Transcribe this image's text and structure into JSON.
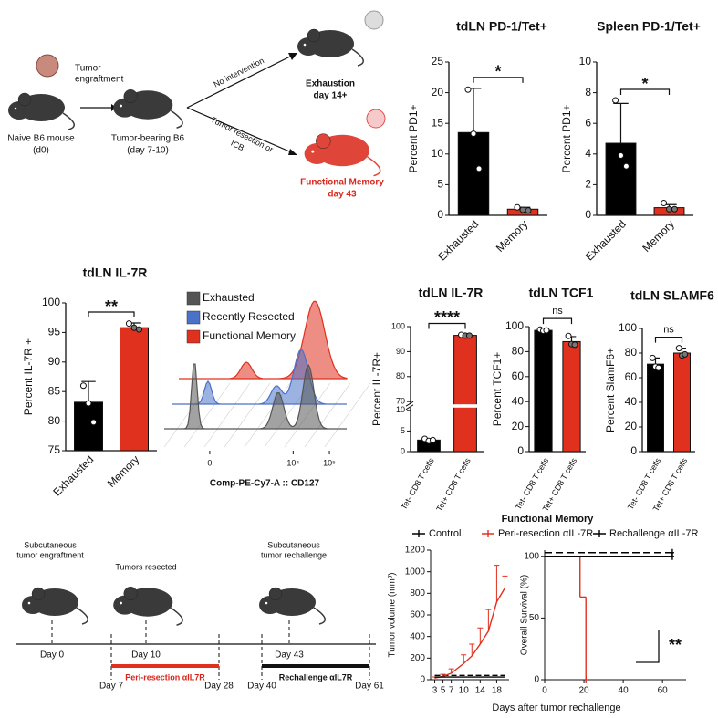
{
  "schematic_top": {
    "tumor_engraftment": [
      "Tumor",
      "engraftment"
    ],
    "naive": [
      "Naive B6 mouse",
      "(d0)"
    ],
    "tumor_bearing": [
      "Tumor-bearing  B6",
      "(day 7-10)"
    ],
    "no_intervention": "No intervention",
    "resection": [
      "Tumor resection or",
      "ICB"
    ],
    "exhaustion": [
      "Exhaustion",
      "day 14+"
    ],
    "memory": [
      "Functional Memory",
      "day 43"
    ]
  },
  "schematic_timeline": {
    "engraftment": [
      "Subcutaneous",
      "tumor engraftment"
    ],
    "resected": "Tumors resected",
    "rechallenge": [
      "Subcutaneous",
      "tumor rechallenge"
    ],
    "days_above": [
      "Day 0",
      "Day 10",
      "Day 43"
    ],
    "days_below": [
      "Day 7",
      "Day 28",
      "Day 40",
      "Day 61"
    ],
    "peri": "Peri-resection αIL7R",
    "rechallenge_treatment": "Rechallenge αIL7R"
  },
  "chart_data": [
    {
      "type": "bar",
      "title": "tdLN PD-1/Tet+",
      "ylabel": "Percent PD1+",
      "categories": [
        "Exhausted",
        "Memory"
      ],
      "values": [
        13.5,
        1.0
      ],
      "errors": [
        7.2,
        0.3
      ],
      "points": [
        [
          20.5,
          13.3,
          7.6
        ],
        [
          1.3,
          0.9,
          0.8
        ]
      ],
      "colors": [
        "#000000",
        "#e0301e"
      ],
      "ylim": [
        0,
        25
      ],
      "yticks": [
        0,
        5,
        10,
        15,
        20,
        25
      ],
      "significance": "*"
    },
    {
      "type": "bar",
      "title": "Spleen PD-1/Tet+",
      "ylabel": "Percent PD1+",
      "categories": [
        "Exhausted",
        "Memory"
      ],
      "values": [
        4.7,
        0.5
      ],
      "errors": [
        2.6,
        0.2
      ],
      "points": [
        [
          7.5,
          3.9,
          3.2
        ],
        [
          0.8,
          0.4,
          0.4
        ]
      ],
      "colors": [
        "#000000",
        "#e0301e"
      ],
      "ylim": [
        0,
        10
      ],
      "yticks": [
        0,
        2,
        4,
        6,
        8,
        10
      ],
      "significance": "*"
    },
    {
      "type": "bar",
      "title": "tdLN IL-7R",
      "ylabel": "Percent IL-7R +",
      "categories": [
        "Exhausted",
        "Memory"
      ],
      "values": [
        83.2,
        95.8
      ],
      "errors": [
        3.5,
        0.8
      ],
      "points": [
        [
          86,
          83,
          79.8
        ],
        [
          96.5,
          95.8,
          95.5
        ]
      ],
      "colors": [
        "#000000",
        "#e0301e"
      ],
      "ylim": [
        75,
        100
      ],
      "yticks": [
        75,
        80,
        85,
        90,
        95,
        100
      ],
      "significance": "**"
    },
    {
      "type": "density",
      "xlabel": "Comp-PE-Cy7-A :: CD127",
      "series": [
        {
          "name": "Exhausted",
          "color": "#555555"
        },
        {
          "name": "Recently Resected",
          "color": "#4a72c8"
        },
        {
          "name": "Functional Memory",
          "color": "#e0301e"
        }
      ],
      "xlim": [
        -200,
        300000
      ],
      "xticks": [
        0,
        {
          "value": 10000,
          "label": "10⁴"
        },
        {
          "value": 100000,
          "label": "10⁵"
        }
      ]
    },
    {
      "type": "bar",
      "title": "tdLN IL-7R",
      "ylabel": "Percent IL-7R+",
      "categories": [
        "Tet- CD8 T cells",
        "Tet+ CD8 T cells"
      ],
      "values": [
        2.8,
        96.5
      ],
      "errors": [
        0.3,
        0.4
      ],
      "points": [
        [
          3.1,
          2.6,
          2.8
        ],
        [
          96.7,
          96.4,
          96.4
        ]
      ],
      "colors": [
        "#000000",
        "#e0301e"
      ],
      "ylim": [
        0,
        100
      ],
      "ybreak": [
        10,
        70
      ],
      "yticks": [
        0,
        5,
        10,
        70,
        80,
        90,
        100
      ],
      "significance": "****"
    },
    {
      "type": "bar",
      "title": "tdLN TCF1",
      "ylabel": "Percent TCF1+",
      "categories": [
        "Tet- CD8 T cells",
        "Tet+ CD8 T cells"
      ],
      "values": [
        97,
        88
      ],
      "errors": [
        0.7,
        4
      ],
      "points": [
        [
          97.6,
          96.6,
          97
        ],
        [
          92.5,
          86,
          85.5
        ]
      ],
      "colors": [
        "#000000",
        "#e0301e"
      ],
      "ylim": [
        0,
        100
      ],
      "yticks": [
        0,
        20,
        40,
        60,
        80,
        100
      ],
      "significance": "ns"
    },
    {
      "type": "bar",
      "title": "tdLN SLAMF6",
      "ylabel": "Percent SlamF6+",
      "categories": [
        "Tet- CD8 T cells",
        "Tet+ CD8 T cells"
      ],
      "values": [
        71,
        80
      ],
      "errors": [
        5,
        4
      ],
      "points": [
        [
          76,
          69,
          68
        ],
        [
          84,
          78,
          79
        ]
      ],
      "colors": [
        "#000000",
        "#e0301e"
      ],
      "ylim": [
        0,
        100
      ],
      "yticks": [
        0,
        20,
        40,
        60,
        80,
        100
      ],
      "significance": "ns"
    },
    {
      "type": "line",
      "legend_title": "Functional Memory",
      "ylabel": "Tumor volume (mm³)",
      "xlabel": "Days after tumor rechallenge",
      "x": [
        3,
        5,
        7,
        10,
        12,
        14,
        16,
        18,
        20
      ],
      "series": [
        {
          "name": "Control",
          "color": "#000000",
          "dash": true,
          "values": [
            40,
            40,
            40,
            40,
            40,
            40,
            40,
            40,
            40
          ]
        },
        {
          "name": "Peri-resection αIL-7R",
          "color": "#e0301e",
          "values": [
            15,
            30,
            60,
            150,
            220,
            330,
            450,
            720,
            850
          ],
          "errors": [
            10,
            20,
            40,
            80,
            110,
            150,
            200,
            340,
            110
          ]
        },
        {
          "name": "Rechallenge αIL-7R",
          "color": "#000000",
          "values": [
            25,
            25,
            25,
            25,
            25,
            25,
            25,
            25,
            25
          ]
        }
      ],
      "xlim": [
        2,
        21
      ],
      "ylim": [
        0,
        1200
      ],
      "xticks": [
        3,
        5,
        7,
        10,
        14,
        18
      ],
      "yticks": [
        0,
        200,
        400,
        600,
        800,
        1000,
        1200
      ]
    },
    {
      "type": "step",
      "ylabel": "Overall Survival (%)",
      "series": [
        {
          "color": "#000000",
          "dash": true,
          "x": [
            0,
            65
          ],
          "values": [
            100,
            100
          ]
        },
        {
          "color": "#e0301e",
          "x": [
            0,
            18,
            21
          ],
          "values": [
            100,
            67,
            0
          ]
        },
        {
          "color": "#000000",
          "x": [
            0,
            65
          ],
          "values": [
            100,
            100
          ]
        }
      ],
      "xlim": [
        0,
        72
      ],
      "ylim": [
        0,
        105
      ],
      "xticks": [
        0,
        20,
        40,
        60
      ],
      "yticks": [
        0,
        50,
        100
      ],
      "significance": "**"
    }
  ]
}
